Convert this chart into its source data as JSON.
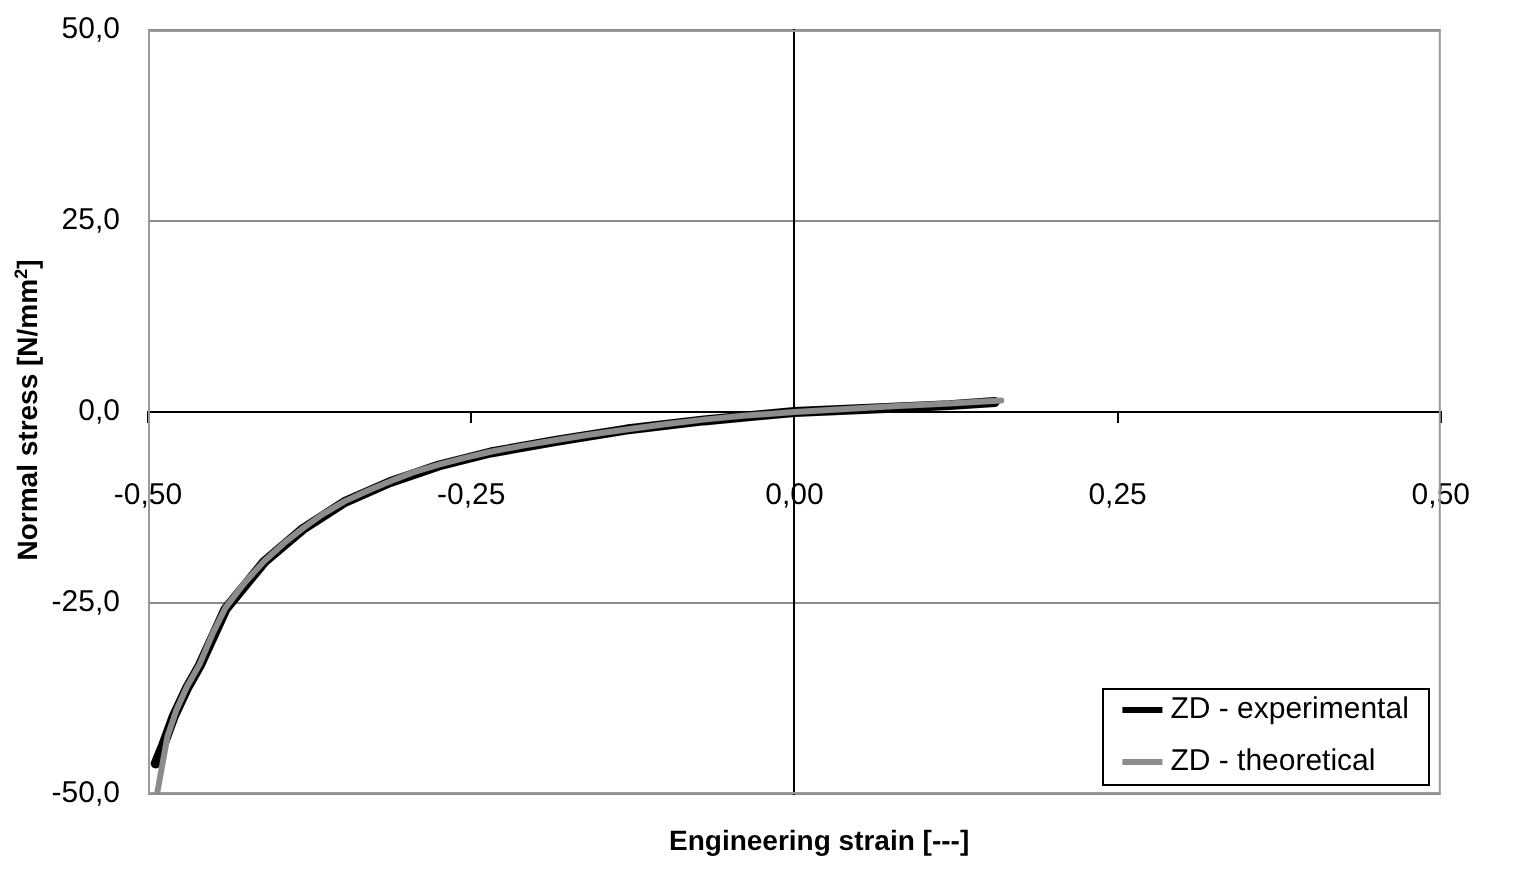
{
  "chart_data": {
    "type": "line",
    "xlabel": "Engineering strain [---]",
    "ylabel": "Normal stress [N/mm$^{2}$]",
    "xlim": [
      -0.5,
      0.5
    ],
    "xticks": [
      {
        "value": -0.5,
        "label": "-0,50"
      },
      {
        "value": -0.25,
        "label": "-0,25"
      },
      {
        "value": 0,
        "label": "0,00"
      },
      {
        "value": 0.25,
        "label": "0,25"
      },
      {
        "value": 0.5,
        "label": "0,50"
      }
    ],
    "ylim": [
      -50,
      50
    ],
    "yticks": [
      {
        "value": -50,
        "label": "-50,0"
      },
      {
        "value": -25,
        "label": "-25,0"
      },
      {
        "value": 0,
        "label": "0,0"
      },
      {
        "value": 25,
        "label": "25,0"
      },
      {
        "value": 50,
        "label": "50,0"
      }
    ],
    "grid": "y",
    "legend": "bottom right",
    "series": [
      {
        "name": "ZD - experimental",
        "color": "#000000",
        "x": [
          -0.494,
          -0.488,
          -0.48,
          -0.47,
          -0.46,
          -0.44,
          -0.41,
          -0.38,
          -0.348,
          -0.313,
          -0.275,
          -0.235,
          -0.185,
          -0.13,
          -0.07,
          0,
          0.04,
          0.08,
          0.12,
          0.155
        ],
        "values": [
          -46.0,
          -43.5,
          -39.8,
          -36.2,
          -33.2,
          -25.8,
          -19.6,
          -15.3,
          -11.8,
          -9.2,
          -7.0,
          -5.3,
          -3.8,
          -2.3,
          -1.1,
          0.0,
          0.3,
          0.6,
          0.9,
          1.3
        ]
      },
      {
        "name": "ZD - theoretical",
        "color": "#8c8c8c",
        "x": [
          -0.493,
          -0.485,
          -0.478,
          -0.47,
          -0.46,
          -0.45,
          -0.44,
          -0.425,
          -0.41,
          -0.395,
          -0.38,
          -0.365,
          -0.348,
          -0.33,
          -0.313,
          -0.295,
          -0.275,
          -0.255,
          -0.235,
          -0.21,
          -0.185,
          -0.16,
          -0.13,
          -0.1,
          -0.07,
          -0.04,
          0,
          0.04,
          0.08,
          0.12,
          0.16
        ],
        "values": [
          -50.0,
          -42.5,
          -39.0,
          -36.0,
          -33.0,
          -29.0,
          -25.6,
          -22.3,
          -19.5,
          -17.2,
          -15.2,
          -13.4,
          -11.7,
          -10.3,
          -9.1,
          -7.9,
          -6.9,
          -6.0,
          -5.2,
          -4.4,
          -3.7,
          -3.0,
          -2.3,
          -1.6,
          -1.0,
          -0.5,
          0.0,
          0.4,
          0.8,
          1.1,
          1.5
        ]
      }
    ]
  }
}
